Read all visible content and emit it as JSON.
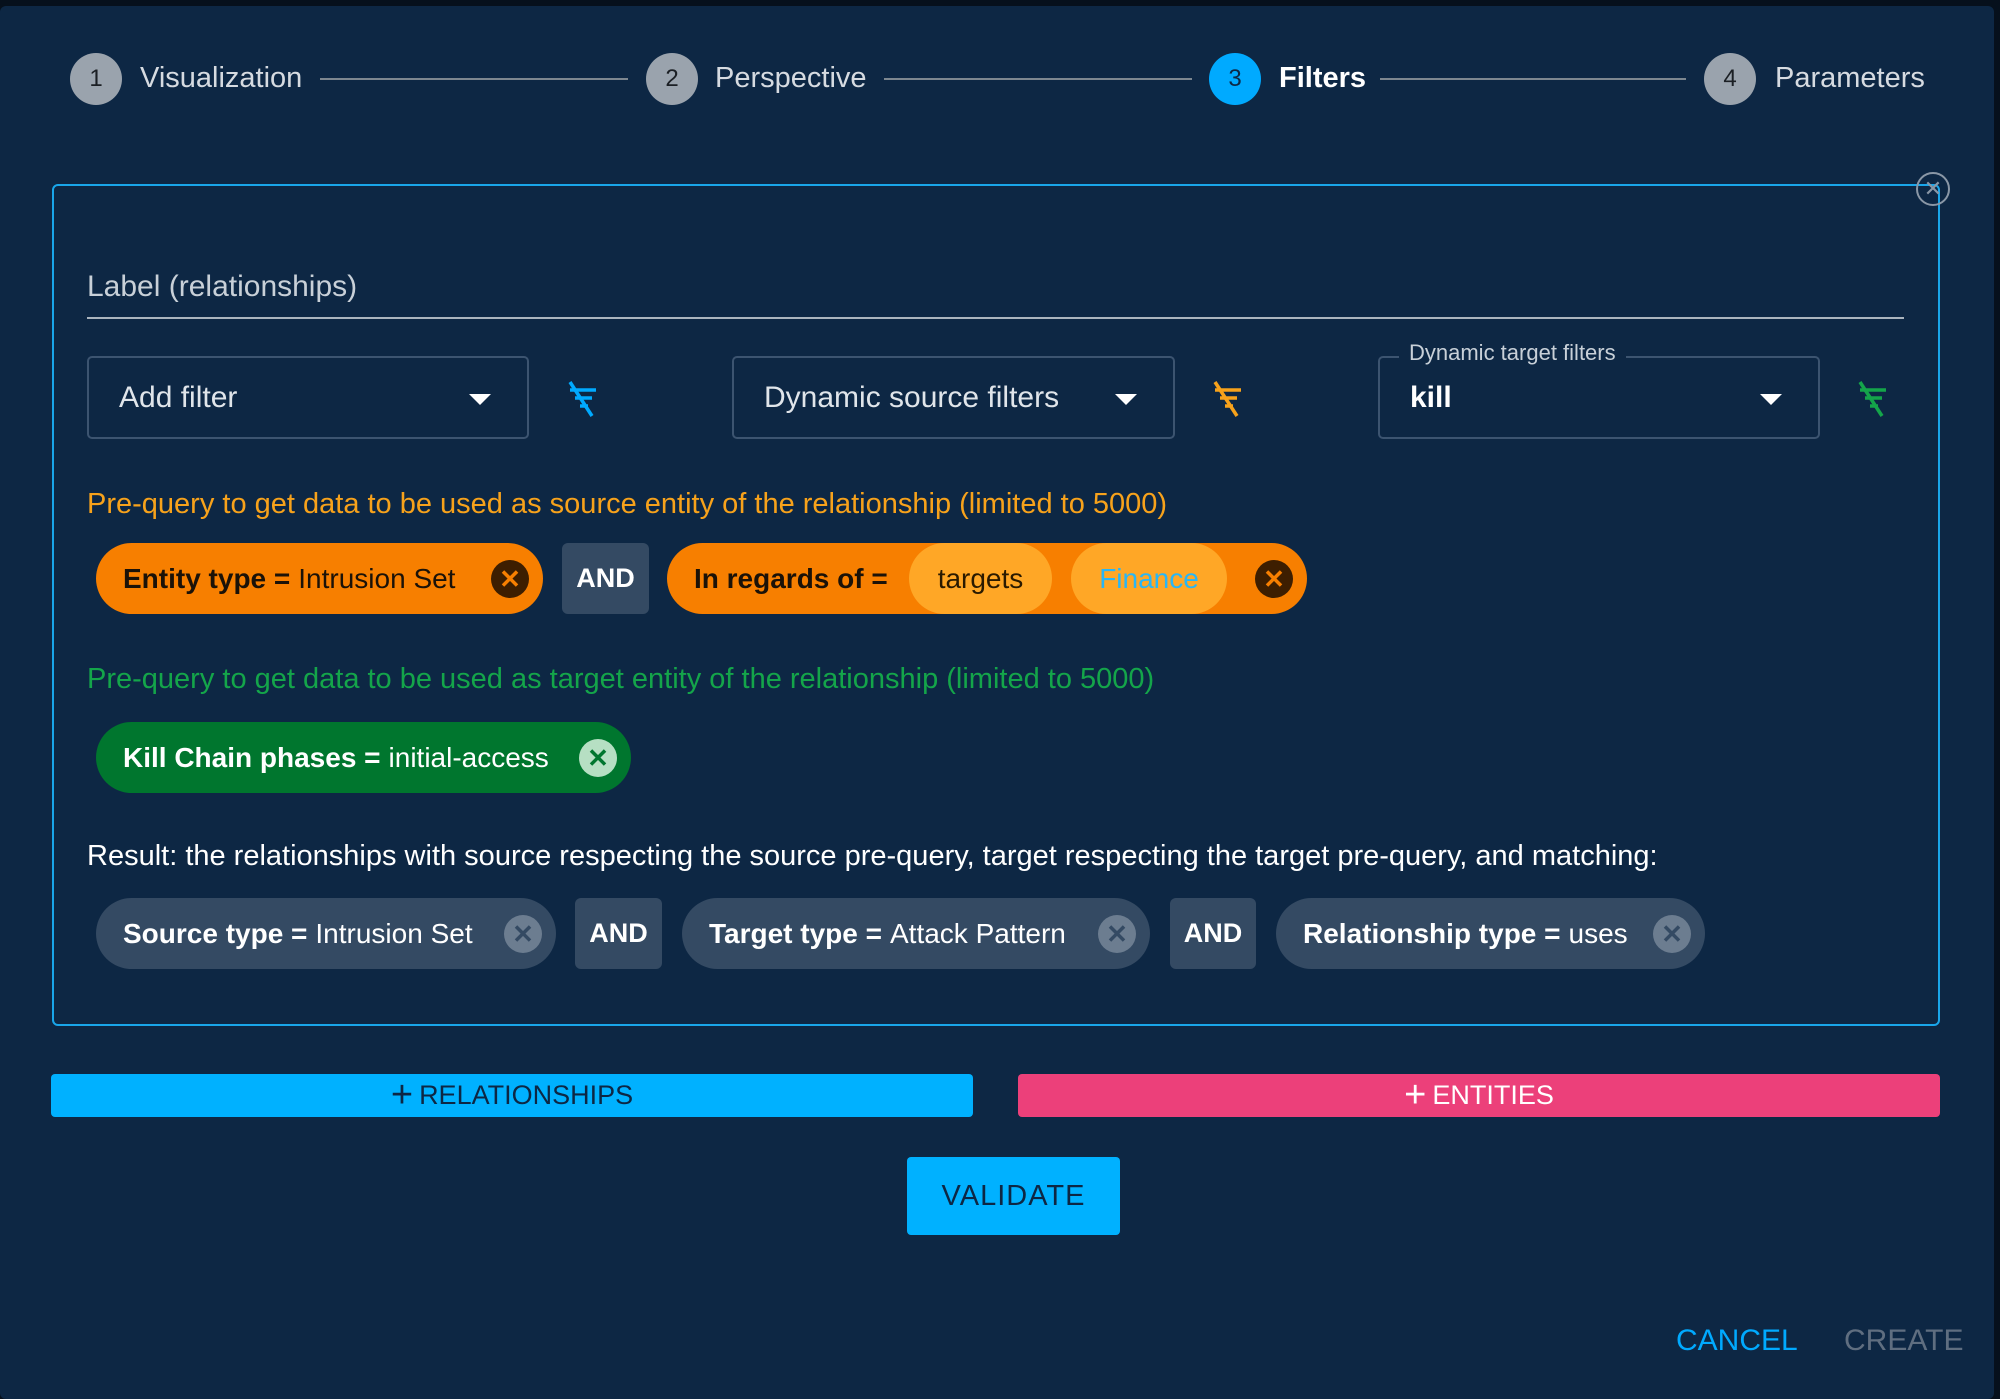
{
  "stepper": {
    "steps": [
      {
        "number": "1",
        "label": "Visualization"
      },
      {
        "number": "2",
        "label": "Perspective"
      },
      {
        "number": "3",
        "label": "Filters",
        "active": true
      },
      {
        "number": "4",
        "label": "Parameters"
      }
    ]
  },
  "panel": {
    "label_placeholder": "Label (relationships)",
    "add_filter": "Add filter",
    "dynamic_source": "Dynamic source filters",
    "dynamic_target_label": "Dynamic target filters",
    "dynamic_target_value": "kill",
    "source_prequery": "Pre-query to get data to be used as source entity of the relationship (limited to 5000)",
    "source_chips": {
      "c1_key": "Entity type =",
      "c1_val": "Intrusion Set",
      "and": "AND",
      "c2_key": "In regards of =",
      "c2_val1": "targets",
      "c2_val2": "Finance"
    },
    "target_prequery": "Pre-query to get data to be used as target entity of the relationship (limited to 5000)",
    "target_chips": {
      "c1_key": "Kill Chain phases =",
      "c1_val": "initial-access"
    },
    "result_text": "Result: the relationships with source respecting the source pre-query, target respecting the target pre-query, and matching:",
    "result_chips": {
      "c1_key": "Source type =",
      "c1_val": "Intrusion Set",
      "and": "AND",
      "c2_key": "Target type =",
      "c2_val": "Attack Pattern",
      "c3_key": "Relationship type =",
      "c3_val": "uses"
    }
  },
  "buttons": {
    "relationships": "RELATIONSHIPS",
    "entities": "ENTITIES",
    "validate": "VALIDATE",
    "cancel": "CANCEL",
    "create": "CREATE"
  },
  "colors": {
    "accent": "#00aaff",
    "source": "#f77f00",
    "target": "#00762e",
    "entities": "#ec407a",
    "background": "#0d2744"
  }
}
